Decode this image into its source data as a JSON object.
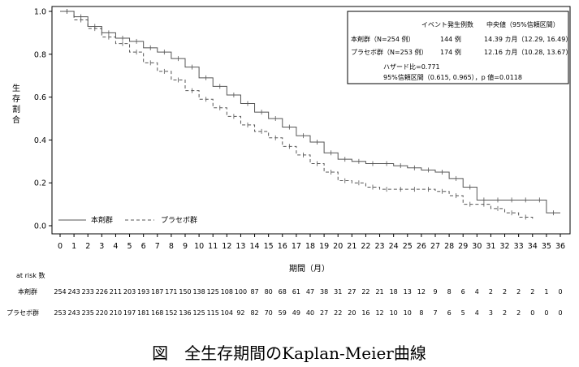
{
  "chart_data": {
    "type": "line",
    "title": "",
    "xlabel": "期間（月）",
    "ylabel": "生存割合",
    "xlim": [
      0,
      36
    ],
    "ylim": [
      0.0,
      1.0
    ],
    "x_ticks": [
      "0",
      "1",
      "2",
      "3",
      "4",
      "5",
      "6",
      "7",
      "8",
      "9",
      "10",
      "11",
      "12",
      "13",
      "14",
      "15",
      "16",
      "17",
      "18",
      "19",
      "20",
      "21",
      "22",
      "23",
      "24",
      "25",
      "26",
      "27",
      "28",
      "29",
      "30",
      "31",
      "32",
      "33",
      "34",
      "35",
      "36"
    ],
    "y_ticks": [
      "0.0",
      "0.2",
      "0.4",
      "0.6",
      "0.8",
      "1.0"
    ],
    "grid": false,
    "legend_position": "bottom-left",
    "series": [
      {
        "name": "本剤群",
        "style": "solid",
        "color": "#555555",
        "x": [
          0,
          1,
          2,
          3,
          4,
          5,
          6,
          7,
          8,
          9,
          10,
          11,
          12,
          13,
          14,
          15,
          16,
          17,
          18,
          19,
          20,
          21,
          22,
          23,
          24,
          25,
          26,
          27,
          28,
          29,
          30,
          31,
          32,
          33,
          34,
          35,
          36
        ],
        "y": [
          1.0,
          0.975,
          0.93,
          0.9,
          0.875,
          0.86,
          0.83,
          0.81,
          0.78,
          0.74,
          0.69,
          0.65,
          0.61,
          0.57,
          0.53,
          0.5,
          0.46,
          0.42,
          0.39,
          0.34,
          0.31,
          0.3,
          0.29,
          0.29,
          0.28,
          0.27,
          0.26,
          0.25,
          0.22,
          0.18,
          0.12,
          0.12,
          0.12,
          0.12,
          0.12,
          0.06,
          0.06
        ]
      },
      {
        "name": "プラセボ群",
        "style": "dashed",
        "color": "#555555",
        "x": [
          0,
          1,
          2,
          3,
          4,
          5,
          6,
          7,
          8,
          9,
          10,
          11,
          12,
          13,
          14,
          15,
          16,
          17,
          18,
          19,
          20,
          21,
          22,
          23,
          24,
          25,
          26,
          27,
          28,
          29,
          30,
          31,
          32,
          33,
          34
        ],
        "y": [
          1.0,
          0.96,
          0.92,
          0.88,
          0.85,
          0.81,
          0.76,
          0.72,
          0.68,
          0.63,
          0.59,
          0.55,
          0.51,
          0.47,
          0.44,
          0.41,
          0.37,
          0.33,
          0.29,
          0.25,
          0.21,
          0.2,
          0.18,
          0.17,
          0.17,
          0.17,
          0.17,
          0.16,
          0.14,
          0.1,
          0.1,
          0.08,
          0.06,
          0.04,
          0.03
        ]
      }
    ],
    "annotation_box": {
      "header_events": "イベント発生例数",
      "header_median": "中央値（95%信頼区間）",
      "rows": [
        {
          "label": "本剤群（N=254 例）",
          "events": "144 例",
          "median": "14.39 カ月（12.29, 16.49）"
        },
        {
          "label": "プラセボ群（N=253 例）",
          "events": "174 例",
          "median": "12.16 カ月（10.28, 13.67）"
        }
      ],
      "hazard": "ハザード比=0.771",
      "ci": "95%信頼区間（0.615, 0.965），p 値=0.0118"
    }
  },
  "at_risk": {
    "title": "at risk 数",
    "rows": [
      {
        "label": "本剤群",
        "values": [
          "254",
          "243",
          "233",
          "226",
          "211",
          "203",
          "193",
          "187",
          "171",
          "150",
          "138",
          "125",
          "108",
          "100",
          "87",
          "80",
          "68",
          "61",
          "47",
          "38",
          "31",
          "27",
          "22",
          "21",
          "18",
          "13",
          "12",
          "9",
          "8",
          "6",
          "4",
          "2",
          "2",
          "2",
          "2",
          "1",
          "0"
        ]
      },
      {
        "label": "プラセボ群",
        "values": [
          "253",
          "243",
          "235",
          "220",
          "210",
          "197",
          "181",
          "168",
          "152",
          "136",
          "125",
          "115",
          "104",
          "92",
          "82",
          "70",
          "59",
          "49",
          "40",
          "27",
          "22",
          "20",
          "16",
          "12",
          "10",
          "10",
          "8",
          "7",
          "6",
          "5",
          "4",
          "3",
          "2",
          "2",
          "0",
          "0",
          "0"
        ]
      }
    ]
  },
  "caption": "図　全生存期間のKaplan-Meier曲線"
}
